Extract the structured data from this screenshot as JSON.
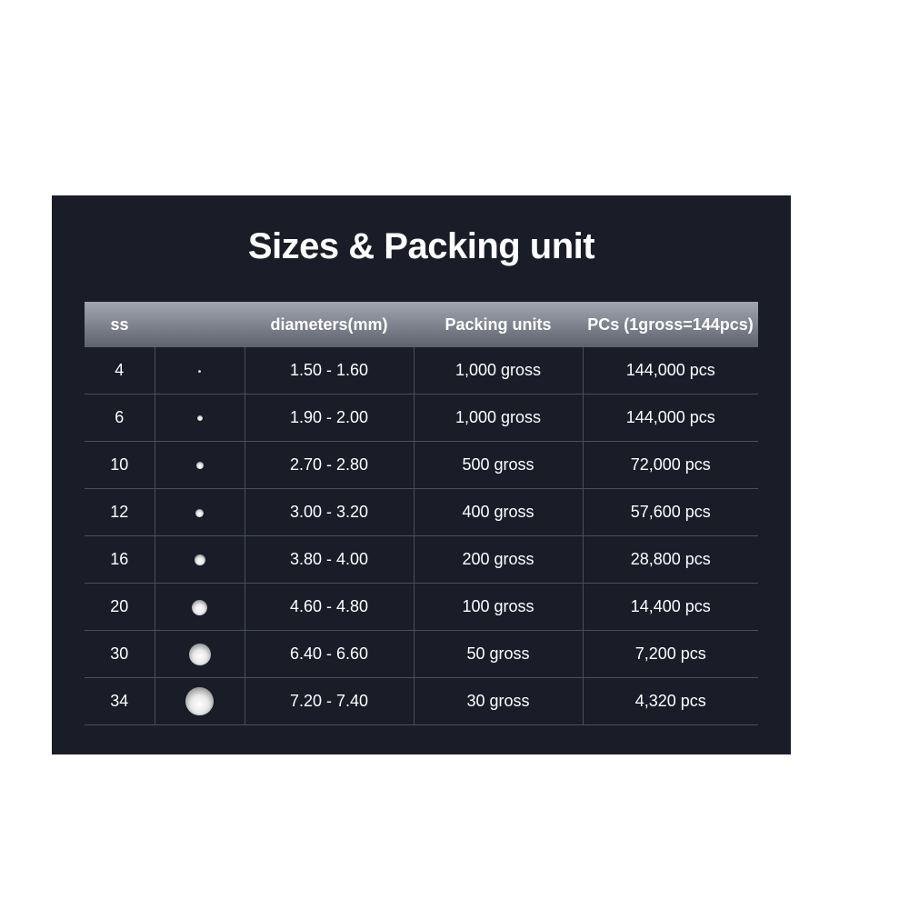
{
  "title": "Sizes & Packing unit",
  "headers": [
    "ss",
    "",
    "diameters(mm)",
    "Packing units",
    "PCs (1gross=144pcs)"
  ],
  "rows": [
    {
      "ss": "4",
      "stone_size": 3,
      "diameter": "1.50 - 1.60",
      "packing": "1,000 gross",
      "pcs": "144,000 pcs"
    },
    {
      "ss": "6",
      "stone_size": 6,
      "diameter": "1.90 - 2.00",
      "packing": "1,000 gross",
      "pcs": "144,000 pcs"
    },
    {
      "ss": "10",
      "stone_size": 8,
      "diameter": "2.70 - 2.80",
      "packing": "500 gross",
      "pcs": "72,000 pcs"
    },
    {
      "ss": "12",
      "stone_size": 9,
      "diameter": "3.00 - 3.20",
      "packing": "400 gross",
      "pcs": "57,600 pcs"
    },
    {
      "ss": "16",
      "stone_size": 12,
      "diameter": "3.80 - 4.00",
      "packing": "200 gross",
      "pcs": "28,800 pcs"
    },
    {
      "ss": "20",
      "stone_size": 17,
      "diameter": "4.60 - 4.80",
      "packing": "100 gross",
      "pcs": "14,400 pcs"
    },
    {
      "ss": "30",
      "stone_size": 24,
      "diameter": "6.40 - 6.60",
      "packing": "50 gross",
      "pcs": "7,200 pcs"
    },
    {
      "ss": "34",
      "stone_size": 31,
      "diameter": "7.20 - 7.40",
      "packing": "30 gross",
      "pcs": "4,320 pcs"
    }
  ],
  "colors": {
    "panel": "#1a1d28",
    "header_top": "#a1a6b0",
    "header_bottom": "#5d626d",
    "text": "#ffffff"
  }
}
